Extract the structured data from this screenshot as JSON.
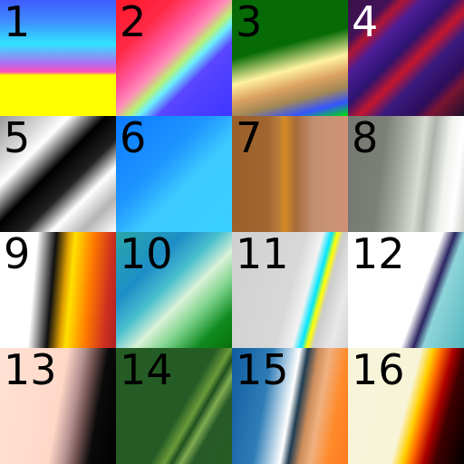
{
  "tiles": [
    {
      "label": "1",
      "label_color": "black",
      "description_icon": "gradient-swatch"
    },
    {
      "label": "2",
      "label_color": "black",
      "description_icon": "gradient-swatch"
    },
    {
      "label": "3",
      "label_color": "black",
      "description_icon": "gradient-swatch"
    },
    {
      "label": "4",
      "label_color": "white",
      "description_icon": "gradient-swatch"
    },
    {
      "label": "5",
      "label_color": "black",
      "description_icon": "gradient-swatch"
    },
    {
      "label": "6",
      "label_color": "black",
      "description_icon": "gradient-swatch"
    },
    {
      "label": "7",
      "label_color": "black",
      "description_icon": "gradient-swatch"
    },
    {
      "label": "8",
      "label_color": "black",
      "description_icon": "gradient-swatch"
    },
    {
      "label": "9",
      "label_color": "black",
      "description_icon": "gradient-swatch"
    },
    {
      "label": "10",
      "label_color": "black",
      "description_icon": "gradient-swatch"
    },
    {
      "label": "11",
      "label_color": "black",
      "description_icon": "gradient-swatch"
    },
    {
      "label": "12",
      "label_color": "black",
      "description_icon": "gradient-swatch"
    },
    {
      "label": "13",
      "label_color": "black",
      "description_icon": "gradient-swatch"
    },
    {
      "label": "14",
      "label_color": "black",
      "description_icon": "gradient-swatch"
    },
    {
      "label": "15",
      "label_color": "black",
      "description_icon": "gradient-swatch"
    },
    {
      "label": "16",
      "label_color": "black",
      "description_icon": "gradient-swatch"
    }
  ]
}
